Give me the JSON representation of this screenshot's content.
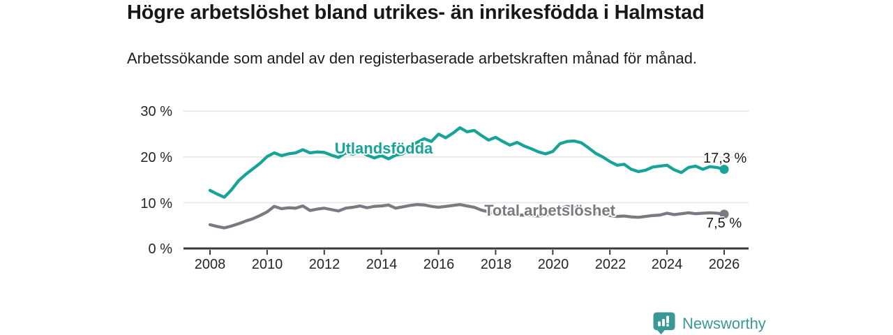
{
  "header": {
    "title": "Högre arbetslöshet bland utrikes- än inrikesfödda i Halmstad",
    "subtitle": "Arbetssökande som andel av den registerbaserade arbetskraften månad för månad."
  },
  "chart_data": {
    "type": "line",
    "title": "Högre arbetslöshet bland utrikes- än inrikesfödda i Halmstad",
    "subtitle": "Arbetssökande som andel av den registerbaserade arbetskraften månad för månad.",
    "unit": "%",
    "grid": "horizontal",
    "legend": "inline-labels",
    "x_start": 2008.0,
    "x_step_years": 0.25,
    "x_end": 2026.0,
    "xlim": [
      2007.1,
      2026.85
    ],
    "ylim": [
      0,
      30
    ],
    "xtick_labels": [
      "2008",
      "2010",
      "2012",
      "2014",
      "2016",
      "2018",
      "2020",
      "2022",
      "2024",
      "2026"
    ],
    "xtick_values": [
      2008,
      2010,
      2012,
      2014,
      2016,
      2018,
      2020,
      2022,
      2024,
      2026
    ],
    "ytick_labels": [
      "0 %",
      "10 %",
      "20 %",
      "30 %"
    ],
    "ytick_values": [
      0,
      10,
      20,
      30
    ],
    "series": [
      {
        "name": "Utlandsfödda",
        "color": "#17a398",
        "end_label": "17,3 %",
        "end_value": 17.3,
        "values": [
          12.7,
          11.9,
          11.2,
          12.8,
          14.8,
          16.2,
          17.4,
          18.6,
          20.1,
          20.9,
          20.3,
          20.7,
          20.9,
          21.6,
          20.9,
          21.1,
          21.0,
          20.4,
          19.9,
          20.9,
          20.6,
          21.3,
          20.4,
          19.8,
          20.3,
          19.6,
          20.4,
          20.7,
          22.1,
          23.2,
          24.0,
          23.4,
          25.0,
          24.2,
          25.2,
          26.4,
          25.5,
          25.8,
          24.7,
          23.7,
          24.3,
          23.4,
          22.6,
          23.2,
          22.4,
          21.8,
          21.1,
          20.7,
          21.2,
          22.9,
          23.4,
          23.5,
          23.1,
          22.0,
          20.8,
          20.0,
          19.0,
          18.2,
          18.4,
          17.3,
          16.8,
          17.1,
          17.8,
          18.0,
          18.2,
          17.2,
          16.6,
          17.7,
          18.0,
          17.3,
          17.9,
          17.7,
          17.3
        ]
      },
      {
        "name": "Total arbetslöshet",
        "color": "#7b7982",
        "end_label": "7,5 %",
        "end_value": 7.5,
        "values": [
          5.2,
          4.8,
          4.5,
          4.9,
          5.4,
          6.0,
          6.5,
          7.2,
          8.0,
          9.2,
          8.7,
          8.9,
          8.8,
          9.3,
          8.3,
          8.6,
          8.8,
          8.5,
          8.2,
          8.8,
          9.0,
          9.3,
          8.9,
          9.2,
          9.3,
          9.5,
          8.8,
          9.1,
          9.4,
          9.6,
          9.5,
          9.2,
          9.0,
          9.2,
          9.4,
          9.6,
          9.3,
          9.0,
          8.4,
          8.0,
          7.7,
          7.5,
          7.4,
          7.3,
          7.3,
          7.2,
          7.1,
          7.3,
          7.6,
          8.7,
          9.2,
          9.0,
          8.6,
          8.2,
          7.8,
          7.4,
          7.2,
          7.0,
          7.1,
          6.9,
          6.8,
          7.0,
          7.2,
          7.3,
          7.7,
          7.4,
          7.6,
          7.8,
          7.6,
          7.7,
          7.8,
          7.7,
          7.5
        ]
      }
    ]
  },
  "colors": {
    "accent_teal": "#17a398",
    "series_gray": "#7b7982",
    "grid_line": "#e3e3e3",
    "axis_line": "#3b3b3b",
    "text": "#1a1a1a",
    "brand_teal": "#3a9996"
  },
  "footer": {
    "brand": "Newsworthy",
    "logo_icon": "bar-chart-pin-icon"
  }
}
